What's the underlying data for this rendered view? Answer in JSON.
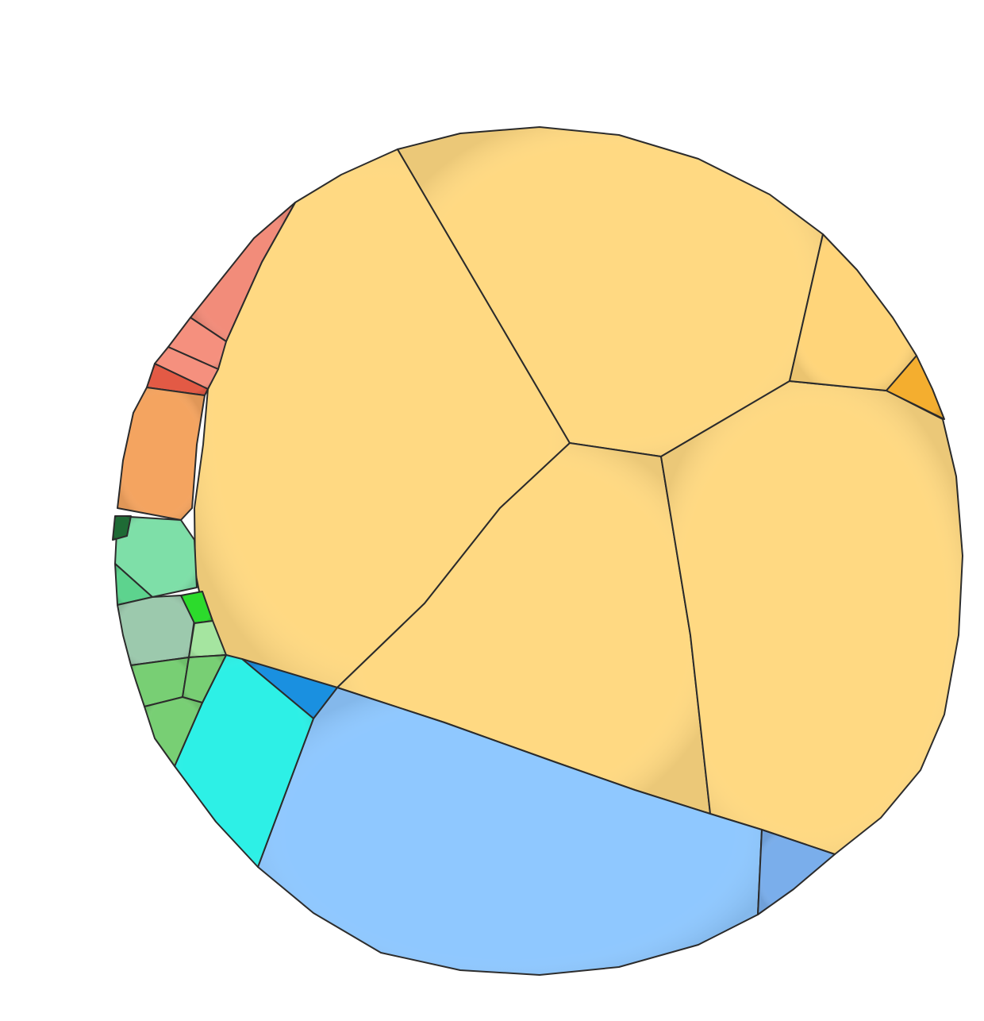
{
  "chart_data": {
    "type": "voronoi-treemap",
    "title": "",
    "legend": "none",
    "colors": {
      "yellow_large": "#FFD982",
      "yellow_small": "#FFD57A",
      "orange_dark": "#F4AE2F",
      "blue_large": "#8FC8FF",
      "blue_small": "#7AAEEB",
      "blue_dark": "#1A90E0",
      "cyan": "#2DF0E6",
      "salmon": "#F28C7A",
      "salmon_light": "#F5907E",
      "red": "#E35A45",
      "orange": "#F4A460",
      "green_pale": "#7EDFA8",
      "green_mid": "#5DD38E",
      "sage": "#9CC9AD",
      "lime": "#2CDB2C",
      "green_light": "#A5E5A0",
      "green": "#78CF74",
      "green_dark": "#1E6B35",
      "outline": "#2b2b2b"
    },
    "cells": [
      {
        "group": "yellow",
        "color_key": "yellow_large",
        "value": 12.1
      },
      {
        "group": "yellow",
        "color_key": "yellow_large",
        "value": 11.4
      },
      {
        "group": "yellow",
        "color_key": "yellow_large",
        "value": 12.8
      },
      {
        "group": "yellow",
        "color_key": "yellow_large",
        "value": 8.2
      },
      {
        "group": "yellow",
        "color_key": "yellow_small",
        "value": 2.6
      },
      {
        "group": "yellow",
        "color_key": "orange_dark",
        "value": 0.3
      },
      {
        "group": "blue",
        "color_key": "blue_large",
        "value": 15.3
      },
      {
        "group": "blue",
        "color_key": "blue_small",
        "value": 1.0
      },
      {
        "group": "blue",
        "color_key": "blue_dark",
        "value": 0.4
      },
      {
        "group": "blue",
        "color_key": "cyan",
        "value": 2.9
      },
      {
        "group": "red",
        "color_key": "salmon",
        "value": 1.3
      },
      {
        "group": "red",
        "color_key": "salmon_light",
        "value": 0.4
      },
      {
        "group": "red",
        "color_key": "salmon_light",
        "value": 0.2
      },
      {
        "group": "red",
        "color_key": "red",
        "value": 0.3
      },
      {
        "group": "red",
        "color_key": "orange",
        "value": 1.8
      },
      {
        "group": "green",
        "color_key": "green_pale",
        "value": 1.0
      },
      {
        "group": "green",
        "color_key": "green_mid",
        "value": 0.4
      },
      {
        "group": "green",
        "color_key": "sage",
        "value": 0.9
      },
      {
        "group": "green",
        "color_key": "lime",
        "value": 0.1
      },
      {
        "group": "green",
        "color_key": "green_light",
        "value": 0.15
      },
      {
        "group": "green",
        "color_key": "green",
        "value": 0.3
      },
      {
        "group": "green",
        "color_key": "green",
        "value": 0.2
      },
      {
        "group": "green",
        "color_key": "green",
        "value": 0.3
      },
      {
        "group": "green",
        "color_key": "green_dark",
        "value": 0.05
      }
    ]
  }
}
